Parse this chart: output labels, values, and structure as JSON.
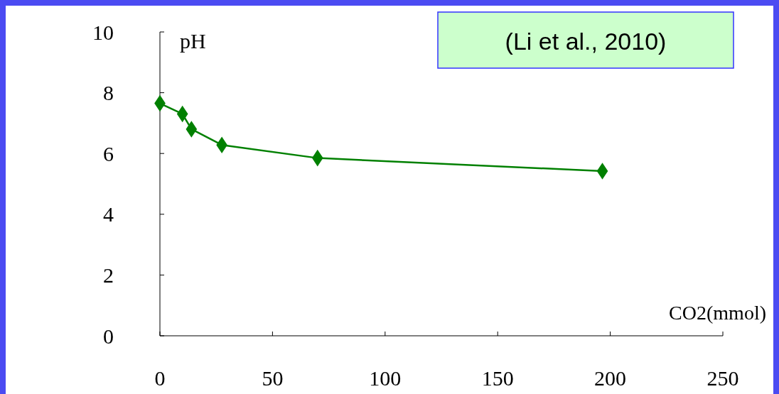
{
  "chart_data": {
    "type": "line",
    "xlabel": "CO2(mmol)",
    "ylabel": "pH",
    "annotations": [
      "(Li et al., 2010)"
    ],
    "x": [
      0,
      10,
      14,
      27.5,
      70,
      196.5
    ],
    "series": [
      {
        "color": "#008000",
        "values": [
          7.65,
          7.3,
          6.8,
          6.28,
          5.85,
          5.42
        ]
      }
    ],
    "xlim": [
      0,
      250
    ],
    "xticks": [
      0,
      50,
      100,
      150,
      200,
      250
    ],
    "ylim": [
      0,
      10
    ],
    "yticks": [
      0,
      2,
      4,
      6,
      8,
      10
    ],
    "marker": "diamond",
    "line_style": "solid",
    "grid": false
  }
}
